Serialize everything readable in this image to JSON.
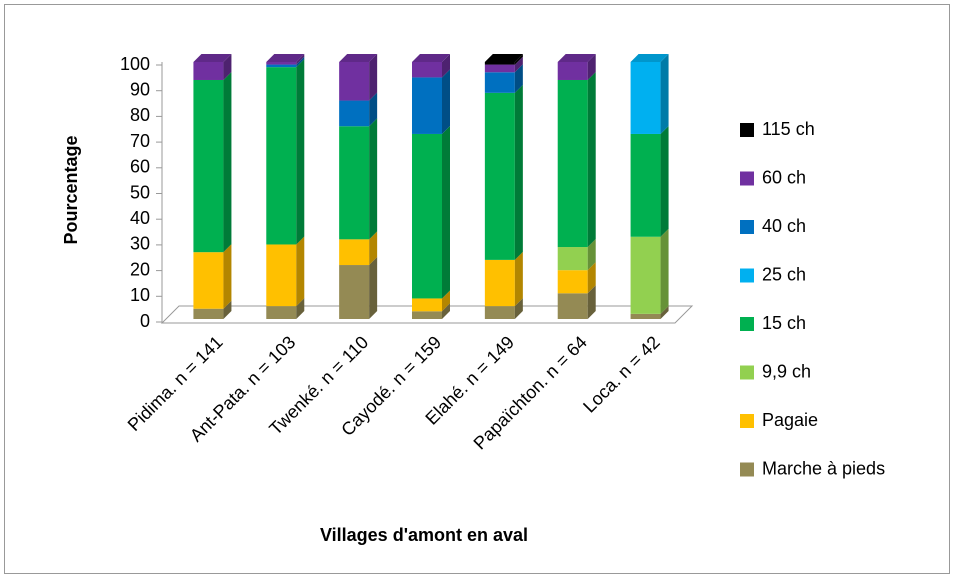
{
  "chart_data": {
    "type": "stacked-bar-3d",
    "x_label": "Villages d'amont en aval",
    "y_label": "Pourcentage",
    "categories": [
      "Pidima. n = 141",
      "Ant-Pata. n = 103",
      "Twenké. n = 110",
      "Cayodé. n = 159",
      "Elahé. n = 149",
      "Papaïchton. n = 64",
      "Loca. n = 42"
    ],
    "series": [
      {
        "name": "Marche à pieds",
        "color": "#948a54",
        "values": [
          4,
          5,
          21,
          3,
          5,
          10,
          2
        ]
      },
      {
        "name": "Pagaie",
        "color": "#ffc000",
        "values": [
          22,
          24,
          10,
          5,
          18,
          9,
          0
        ]
      },
      {
        "name": "9,9 ch",
        "color": "#92d050",
        "values": [
          0,
          0,
          0,
          0,
          0,
          9,
          30
        ]
      },
      {
        "name": "15 ch",
        "color": "#00b050",
        "values": [
          67,
          69,
          44,
          64,
          65,
          65,
          40
        ]
      },
      {
        "name": "25 ch",
        "color": "#00b0f0",
        "values": [
          0,
          0,
          0,
          0,
          0,
          0,
          28
        ]
      },
      {
        "name": "40 ch",
        "color": "#0070c0",
        "values": [
          0,
          1,
          10,
          22,
          8,
          0,
          0
        ]
      },
      {
        "name": "60 ch",
        "color": "#7030a0",
        "values": [
          7,
          1,
          15,
          6,
          3,
          7,
          0
        ]
      },
      {
        "name": "115 ch",
        "color": "#000000",
        "values": [
          0,
          0,
          0,
          0,
          1,
          0,
          0
        ]
      }
    ],
    "ylim": [
      0,
      100
    ],
    "yticks": [
      0,
      10,
      20,
      30,
      40,
      50,
      60,
      70,
      80,
      90,
      100
    ]
  }
}
